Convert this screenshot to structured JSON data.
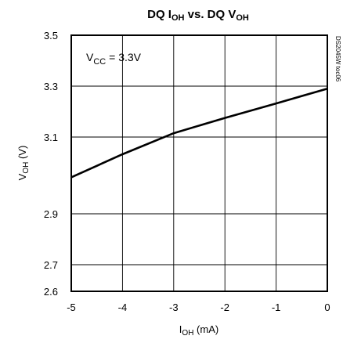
{
  "chart_data": {
    "type": "line",
    "title": "DQ Iₒₕ vs. DQ Vₒₕ",
    "title_parts": {
      "a": "DQ I",
      "a_sub": "OH",
      "b": " vs. DQ V",
      "b_sub": "OH"
    },
    "xlabel_parts": {
      "main": "I",
      "sub": "OH",
      "rest": " (mA)"
    },
    "ylabel_parts": {
      "main": "V",
      "sub": "OH",
      "rest": " (V)"
    },
    "annotation_parts": {
      "main": "V",
      "sub": "CC",
      "rest": " = 3.3V"
    },
    "code_label": "DS2045W toc06",
    "xlim": [
      -5,
      0
    ],
    "ylim": [
      2.6,
      3.5
    ],
    "x_ticks": [
      -5,
      -4,
      -3,
      -2,
      -1,
      0
    ],
    "y_ticks": [
      2.6,
      2.7,
      2.9,
      3.1,
      3.3,
      3.5
    ],
    "x_tick_labels": [
      "-5",
      "-4",
      "-3",
      "-2",
      "-1",
      "0"
    ],
    "y_tick_labels": [
      "2.6",
      "2.7",
      "2.9",
      "3.1",
      "3.3",
      "3.5"
    ],
    "x_gridlines": [
      -4,
      -3,
      -2,
      -1
    ],
    "y_gridlines": [
      2.7,
      2.9,
      3.1,
      3.3
    ],
    "grid": true,
    "series": [
      {
        "x": [
          -5,
          -4,
          -3,
          -2,
          -1,
          0
        ],
        "y": [
          2.995,
          3.055,
          3.115,
          3.175,
          3.232,
          3.29
        ]
      }
    ]
  }
}
